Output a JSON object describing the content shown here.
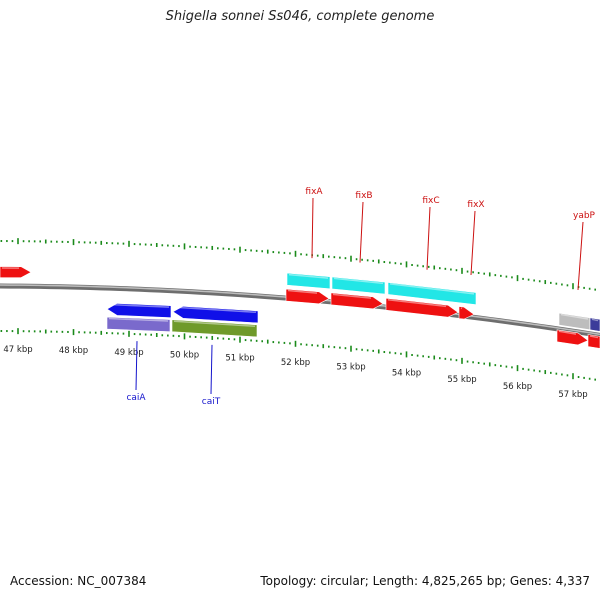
{
  "title": "Shigella sonnei Ss046, complete genome",
  "footer": {
    "accession": "Accession: NC_007384",
    "summary": "Topology: circular; Length: 4,825,265 bp; Genes: 4,337"
  },
  "colors": {
    "backbone": "#8c8c8c",
    "tick": "#1a8a1a",
    "cds": "#ee1111",
    "cds_reverse": "#1010e8",
    "cyan_feature": "#22e6e6",
    "purple_feature": "#7a6acc",
    "olive_feature": "#6f9a2a",
    "grey_feature": "#bdbdbd",
    "label_forward": "#cc1111",
    "label_reverse": "#1515cc"
  },
  "scale": {
    "labels": [
      "47 kbp",
      "48 kbp",
      "49 kbp",
      "50 kbp",
      "51 kbp",
      "52 kbp",
      "53 kbp",
      "54 kbp",
      "55 kbp",
      "56 kbp",
      "57 kbp"
    ]
  },
  "genes": {
    "forward": [
      "fixA",
      "fixB",
      "fixC",
      "fixX",
      "yabP"
    ],
    "reverse": [
      "caiA",
      "caiT"
    ]
  }
}
